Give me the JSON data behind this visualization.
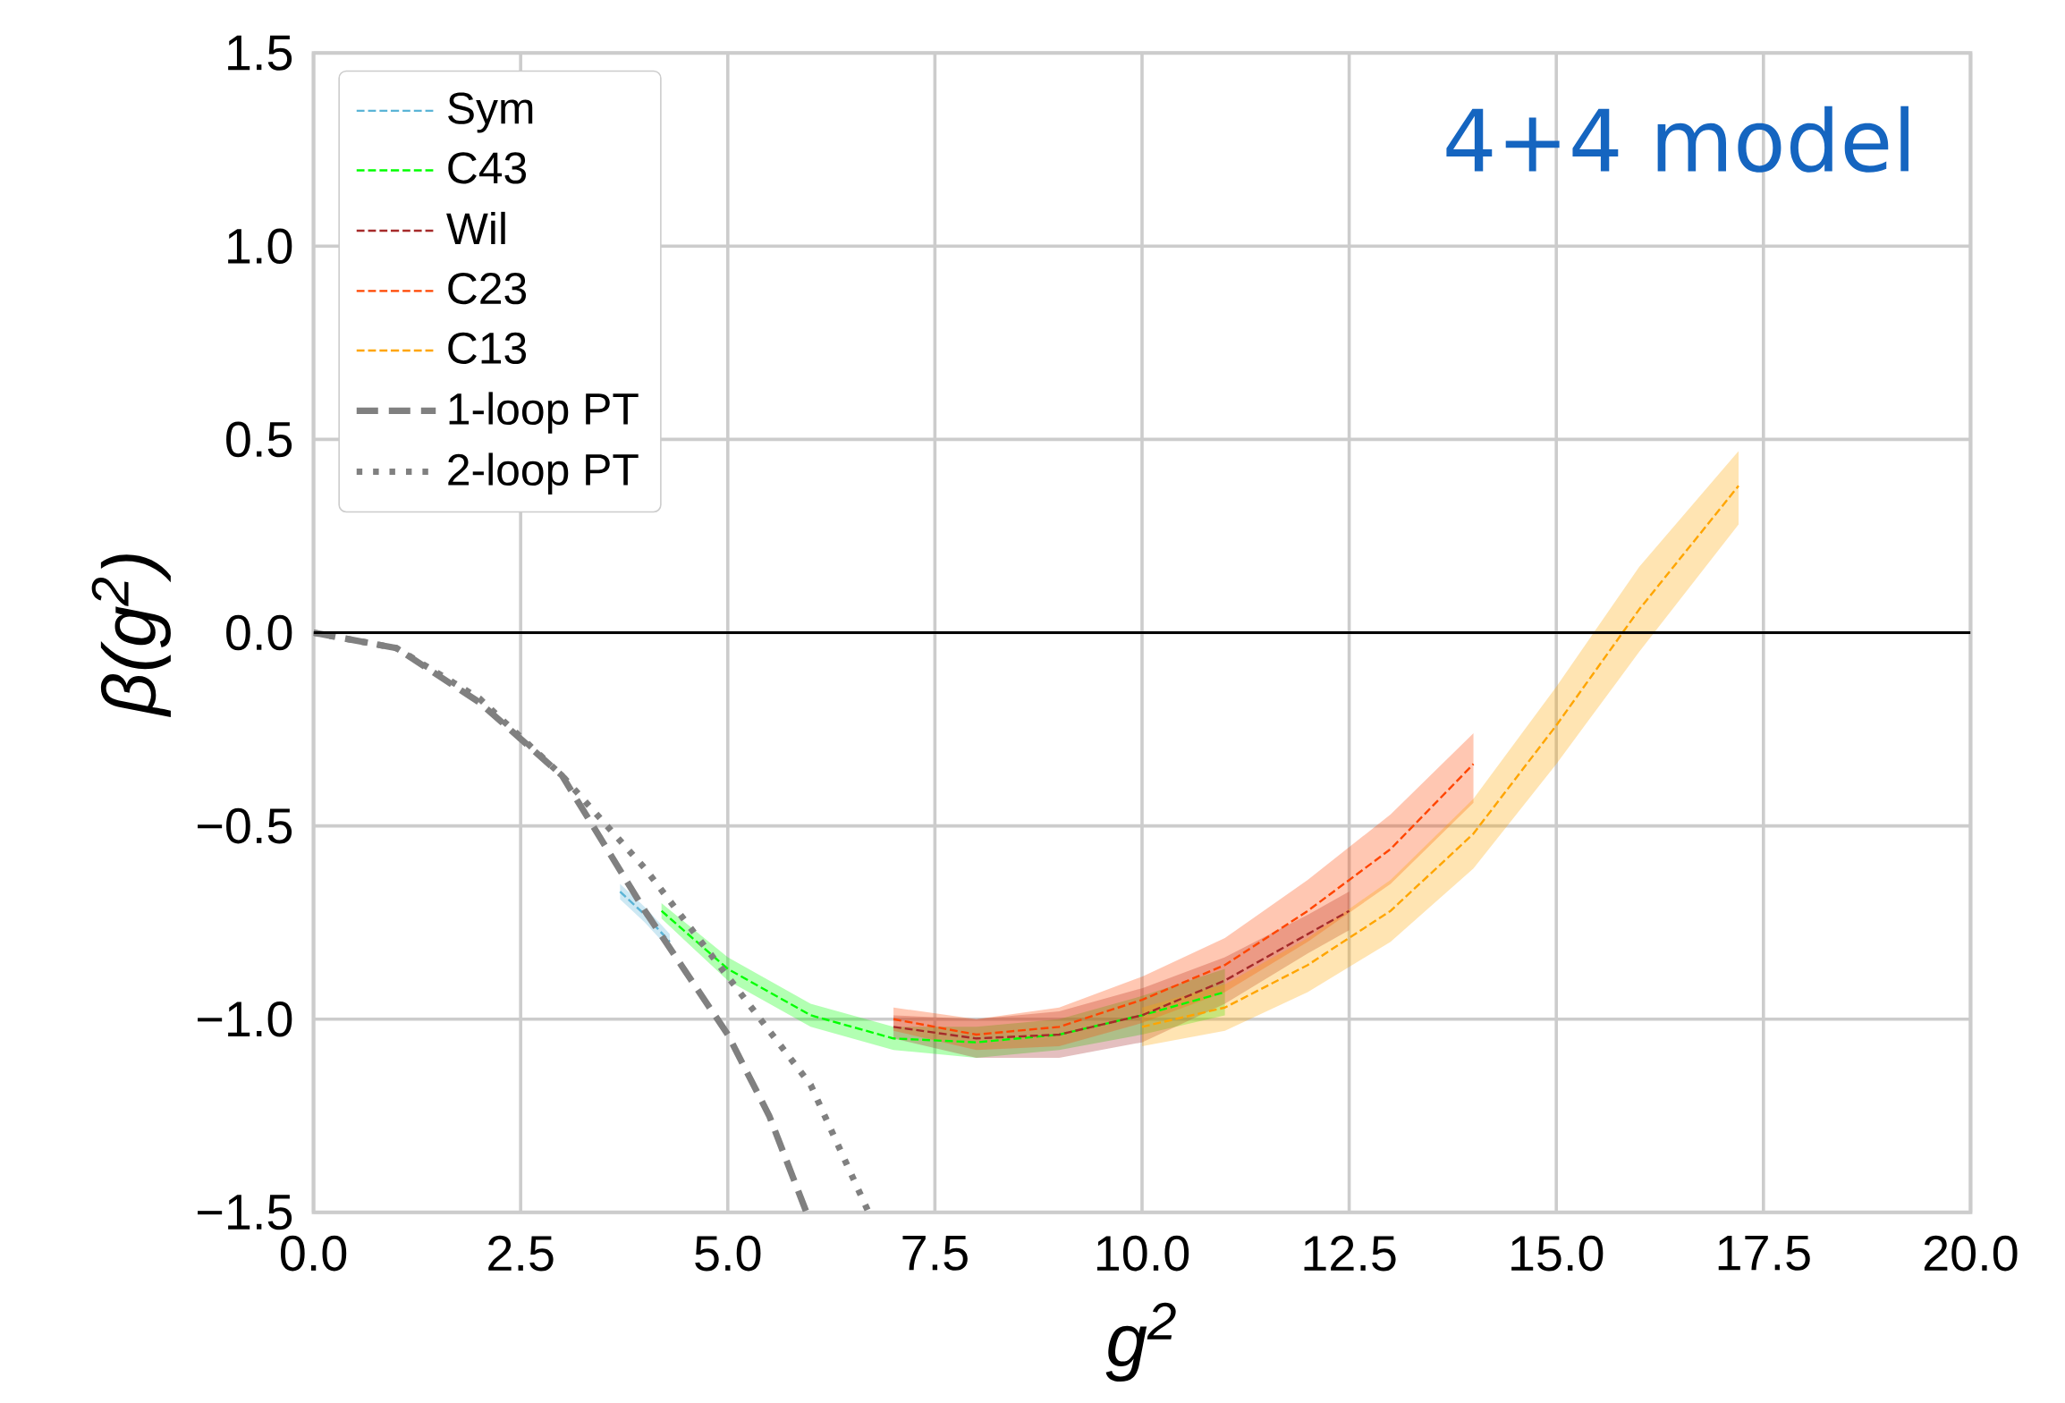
{
  "chart_data": {
    "type": "line",
    "xlabel": "g$^{2}$",
    "ylabel": "β(g$^{2}$)",
    "xlim": [
      0,
      20
    ],
    "ylim": [
      -1.5,
      1.5
    ],
    "xticks": [
      {
        "value": 0,
        "label": "0.0"
      },
      {
        "value": 2.5,
        "label": "2.5"
      },
      {
        "value": 5,
        "label": "5.0"
      },
      {
        "value": 7.5,
        "label": "7.5"
      },
      {
        "value": 10,
        "label": "10.0"
      },
      {
        "value": 12.5,
        "label": "12.5"
      },
      {
        "value": 15,
        "label": "15.0"
      },
      {
        "value": 17.5,
        "label": "17.5"
      },
      {
        "value": 20,
        "label": "20.0"
      }
    ],
    "yticks": [
      {
        "value": -1.5,
        "label": "−1.5"
      },
      {
        "value": -1,
        "label": "−1.0"
      },
      {
        "value": -0.5,
        "label": "−0.5"
      },
      {
        "value": 0,
        "label": "0.0"
      },
      {
        "value": 0.5,
        "label": "0.5"
      },
      {
        "value": 1,
        "label": "1.0"
      },
      {
        "value": 1.5,
        "label": "1.5"
      }
    ],
    "grid": true,
    "legend": "top left",
    "marker": "none",
    "annotations": [
      "4+4 model"
    ],
    "ref_lines": [
      {
        "axis": "y",
        "value": 0,
        "color": "#000000"
      }
    ],
    "series": [
      {
        "name": "Sym",
        "color": "#5ab4d6",
        "line_style": "dashed",
        "x": [
          3.7,
          4.0,
          4.3
        ],
        "values": [
          -0.67,
          -0.73,
          -0.8
        ],
        "lower": [
          -0.69,
          -0.75,
          -0.82
        ],
        "upper": [
          -0.65,
          -0.71,
          -0.78
        ]
      },
      {
        "name": "C43",
        "color": "#00ff00",
        "line_style": "dashed",
        "x": [
          4.2,
          5,
          6,
          7,
          8,
          9,
          10,
          11
        ],
        "values": [
          -0.72,
          -0.87,
          -0.99,
          -1.05,
          -1.06,
          -1.04,
          -0.99,
          -0.93
        ],
        "lower": [
          -0.74,
          -0.9,
          -1.02,
          -1.08,
          -1.1,
          -1.08,
          -1.04,
          -0.99
        ],
        "upper": [
          -0.7,
          -0.84,
          -0.96,
          -1.02,
          -1.02,
          -1.0,
          -0.94,
          -0.87
        ]
      },
      {
        "name": "Wil",
        "color": "#a52a2a",
        "line_style": "dashed",
        "x": [
          7,
          8,
          9,
          10,
          11,
          12,
          12.5
        ],
        "values": [
          -1.02,
          -1.05,
          -1.04,
          -0.99,
          -0.9,
          -0.78,
          -0.72
        ],
        "lower": [
          -1.05,
          -1.1,
          -1.1,
          -1.06,
          -0.96,
          -0.83,
          -0.77
        ],
        "upper": [
          -0.99,
          -1.0,
          -0.98,
          -0.92,
          -0.84,
          -0.73,
          -0.67
        ]
      },
      {
        "name": "C23",
        "color": "#ff4500",
        "line_style": "dashed",
        "x": [
          7,
          8,
          9,
          10,
          11,
          12,
          13,
          14
        ],
        "values": [
          -1.0,
          -1.04,
          -1.02,
          -0.95,
          -0.86,
          -0.72,
          -0.56,
          -0.34
        ],
        "lower": [
          -1.03,
          -1.08,
          -1.07,
          -1.01,
          -0.93,
          -0.8,
          -0.65,
          -0.44
        ],
        "upper": [
          -0.97,
          -1.0,
          -0.97,
          -0.89,
          -0.79,
          -0.64,
          -0.47,
          -0.26
        ]
      },
      {
        "name": "C13",
        "color": "#ffa500",
        "line_style": "dashed",
        "x": [
          10,
          11,
          12,
          13,
          14,
          15,
          16,
          17.2
        ],
        "values": [
          -1.02,
          -0.97,
          -0.86,
          -0.72,
          -0.52,
          -0.24,
          0.06,
          0.38
        ],
        "lower": [
          -1.07,
          -1.03,
          -0.93,
          -0.8,
          -0.61,
          -0.34,
          -0.05,
          0.28
        ],
        "upper": [
          -0.97,
          -0.91,
          -0.79,
          -0.64,
          -0.43,
          -0.14,
          0.17,
          0.47
        ]
      },
      {
        "name": "1-loop PT",
        "color": "#808080",
        "line_style": "dashed",
        "x": [
          0,
          1,
          2,
          3,
          4,
          5,
          5.5,
          5.95
        ],
        "values": [
          0,
          -0.04,
          -0.18,
          -0.37,
          -0.72,
          -1.04,
          -1.25,
          -1.5
        ]
      },
      {
        "name": "2-loop PT",
        "color": "#808080",
        "line_style": "dotted",
        "x": [
          0,
          1,
          2,
          3,
          4,
          5,
          6,
          6.7
        ],
        "values": [
          0,
          -0.04,
          -0.17,
          -0.37,
          -0.61,
          -0.89,
          -1.17,
          -1.5
        ]
      }
    ]
  }
}
